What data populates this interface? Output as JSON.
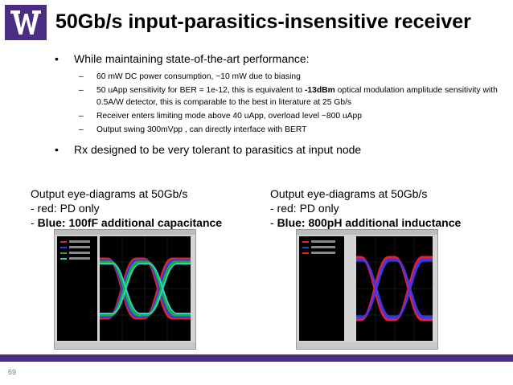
{
  "slide": {
    "title": "50Gb/s input-parasitics-insensitive receiver",
    "bullets": [
      "While maintaining state-of-the-art performance:",
      "Rx designed to be very tolerant to parasitics at input node"
    ],
    "sub_bullets": [
      {
        "text": "60 mW DC power consumption, ~10 mW due to biasing"
      },
      {
        "before": "50 uApp sensitivity for BER = 1e-12, this is equivalent to ",
        "bold": "-13dBm",
        "after": " optical modulation amplitude sensitivity with 0.5A/W detector, this is comparable to the best in literature at 25 Gb/s"
      },
      {
        "text": "Receiver enters limiting mode above 40 uApp, overload level ~800 uApp"
      },
      {
        "text": "Output swing 300mVpp , can directly interface with BERT"
      }
    ],
    "left_caption": {
      "line1": "Output eye-diagrams at 50Gb/s",
      "line2": "- red: PD only",
      "line3_dash": "- ",
      "line3_bold": "Blue: 100fF additional capacitance"
    },
    "right_caption": {
      "line1": "Output eye-diagrams at 50Gb/s",
      "line2": "- red: PD only",
      "line3_dash": "- ",
      "line3_bold": "Blue: 800pH additional inductance"
    },
    "page_number": "69",
    "colors": {
      "uw_purple": "#4b2e83",
      "eye_red": "#e8232b",
      "eye_blue": "#2b3de0",
      "eye_green": "#22aa33",
      "eye_cyan": "#2ad0d0"
    }
  }
}
